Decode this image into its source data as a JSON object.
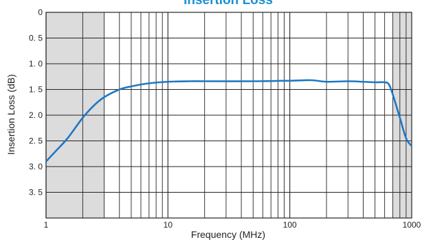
{
  "chart_data": {
    "type": "line",
    "title": "Insertion Loss",
    "xlabel": "Frequency (MHz)",
    "ylabel": "Insertion Loss (dB)",
    "x_scale": "log",
    "xlim": [
      1,
      1000
    ],
    "ylim": [
      0,
      4.0
    ],
    "y_inverted": true,
    "x_ticks": [
      {
        "value": 1,
        "label": "1"
      },
      {
        "value": 10,
        "label": "10"
      },
      {
        "value": 100,
        "label": "100"
      },
      {
        "value": 1000,
        "label": "1000"
      }
    ],
    "y_ticks": [
      {
        "value": 0,
        "label": "0"
      },
      {
        "value": 0.5,
        "label": "0. 5"
      },
      {
        "value": 1.0,
        "label": "1. 0"
      },
      {
        "value": 1.5,
        "label": "1. 5"
      },
      {
        "value": 2.0,
        "label": "2. 0"
      },
      {
        "value": 2.5,
        "label": "2. 5"
      },
      {
        "value": 3.0,
        "label": "3. 0"
      },
      {
        "value": 3.5,
        "label": "3. 5"
      }
    ],
    "grid": true,
    "shaded_ranges": [
      {
        "from": 1,
        "to": 3
      },
      {
        "from": 700,
        "to": 1000
      }
    ],
    "series": [
      {
        "color": "#1f77c4",
        "x": [
          1,
          1.2,
          1.5,
          2,
          2.5,
          3,
          4,
          5,
          7,
          10,
          15,
          20,
          50,
          100,
          150,
          200,
          300,
          400,
          500,
          600,
          650,
          700,
          800,
          900,
          1000
        ],
        "y": [
          2.9,
          2.7,
          2.45,
          2.05,
          1.8,
          1.65,
          1.5,
          1.44,
          1.38,
          1.35,
          1.34,
          1.34,
          1.34,
          1.33,
          1.32,
          1.35,
          1.34,
          1.35,
          1.36,
          1.36,
          1.4,
          1.6,
          2.05,
          2.45,
          2.6
        ]
      }
    ],
    "colors": {
      "shade": "#dcdcdc",
      "grid": "#222222",
      "title": "#1a8fd6"
    }
  }
}
